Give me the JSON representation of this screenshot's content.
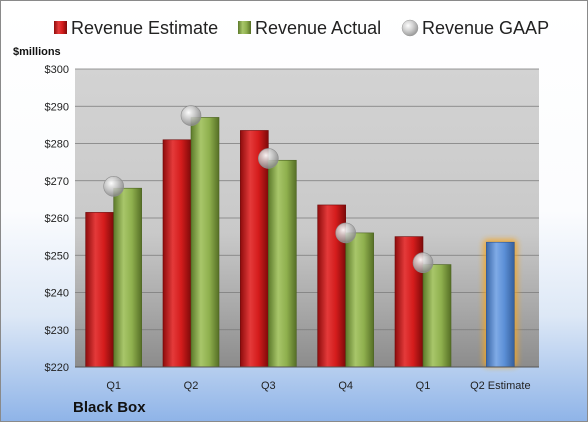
{
  "company": "Black Box",
  "colors": {
    "estimate": "#d41c1c",
    "actual": "#8fb04e",
    "gaap": "#b8b8b8",
    "future_estimate": "#5b8fd6",
    "highlight": "#f5a623"
  },
  "chart_data": {
    "type": "bar",
    "ylabel": "$millions",
    "ylim": [
      220,
      300
    ],
    "yticks": [
      220,
      230,
      240,
      250,
      260,
      270,
      280,
      290,
      300
    ],
    "ytick_labels": [
      "$220",
      "$230",
      "$240",
      "$250",
      "$260",
      "$270",
      "$280",
      "$290",
      "$300"
    ],
    "grid": true,
    "legend_position": "top",
    "categories": [
      "Q1",
      "Q2",
      "Q3",
      "Q4",
      "Q1",
      "Q2 Estimate"
    ],
    "series": [
      {
        "name": "Revenue Estimate",
        "values": [
          261.5,
          281,
          283.5,
          263.5,
          255,
          null
        ]
      },
      {
        "name": "Revenue Actual",
        "values": [
          268,
          287,
          275.5,
          256,
          247.5,
          null
        ]
      },
      {
        "name": "Revenue GAAP",
        "values": [
          268.5,
          287.5,
          276,
          256,
          248,
          null
        ]
      }
    ],
    "future_estimate": {
      "category_index": 5,
      "value": 253.5
    }
  }
}
